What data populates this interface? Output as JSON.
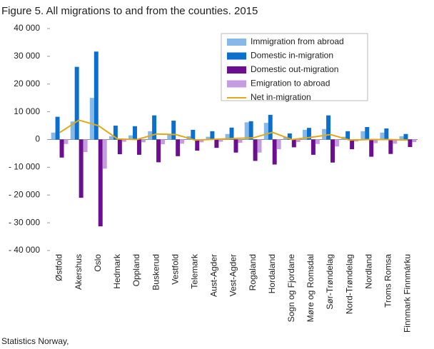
{
  "chart_data": {
    "type": "bar",
    "title": "Figure 5. All migrations to and from the counties. 2015",
    "source": "Statistics Norway,",
    "categories": [
      "Østfold",
      "Akershus",
      "Oslo",
      "Hedmark",
      "Oppland",
      "Buskerud",
      "Vestfold",
      "Telemark",
      "Aust-Agder",
      "Vest-Agder",
      "Rogaland",
      "Hordaland",
      "Sogn og Fjordane",
      "Møre og Romsdal",
      "Sør-Trøndelag",
      "Nord-Trøndelag",
      "Nordland",
      "Troms Romsa",
      "Finnmark Finnmárku"
    ],
    "series": [
      {
        "name": "Immigration from abroad",
        "color": "#86b9e8",
        "values": [
          2500,
          6500,
          15000,
          1200,
          1500,
          3000,
          2000,
          1200,
          1000,
          2000,
          6200,
          6000,
          1000,
          3500,
          3800,
          1000,
          3000,
          2500,
          1200
        ]
      },
      {
        "name": "Domestic in-migration",
        "color": "#0b6fce",
        "values": [
          8200,
          26200,
          31700,
          5000,
          4800,
          8700,
          6800,
          3500,
          3000,
          4300,
          6600,
          8900,
          2200,
          4200,
          8700,
          3000,
          4500,
          4000,
          2000
        ]
      },
      {
        "name": "Domestic out-migration",
        "color": "#6b0e8f",
        "values": [
          -6500,
          -21000,
          -31300,
          -5300,
          -5500,
          -8200,
          -6000,
          -4000,
          -3000,
          -4700,
          -7700,
          -9000,
          -2800,
          -5500,
          -8300,
          -3500,
          -6200,
          -5200,
          -2700
        ]
      },
      {
        "name": "Emigration to abroad",
        "color": "#c59ce0",
        "values": [
          -1600,
          -4500,
          -10500,
          -800,
          -1000,
          -1700,
          -1500,
          -1000,
          -800,
          -1200,
          -4700,
          -3500,
          -900,
          -1600,
          -2500,
          -700,
          -1300,
          -1500,
          -900
        ]
      },
      {
        "name": "Net in-migration",
        "type": "line",
        "color": "#e0a91a",
        "values": [
          2500,
          7000,
          5000,
          200,
          0,
          2000,
          1800,
          -200,
          100,
          400,
          600,
          2600,
          0,
          800,
          1800,
          -200,
          0,
          0,
          -200
        ]
      }
    ],
    "ylim": [
      -40000,
      40000
    ],
    "yticks": [
      {
        "value": -40000,
        "label": "- 40 000"
      },
      {
        "value": -30000,
        "label": "- 30 000"
      },
      {
        "value": -20000,
        "label": "- 20 000"
      },
      {
        "value": -10000,
        "label": "- 10 000"
      },
      0,
      {
        "value": 10000,
        "label": "10 000"
      },
      {
        "value": 20000,
        "label": "20 000"
      },
      {
        "value": 30000,
        "label": "30 000"
      },
      {
        "value": 40000,
        "label": "40 000"
      }
    ],
    "grid": false
  }
}
